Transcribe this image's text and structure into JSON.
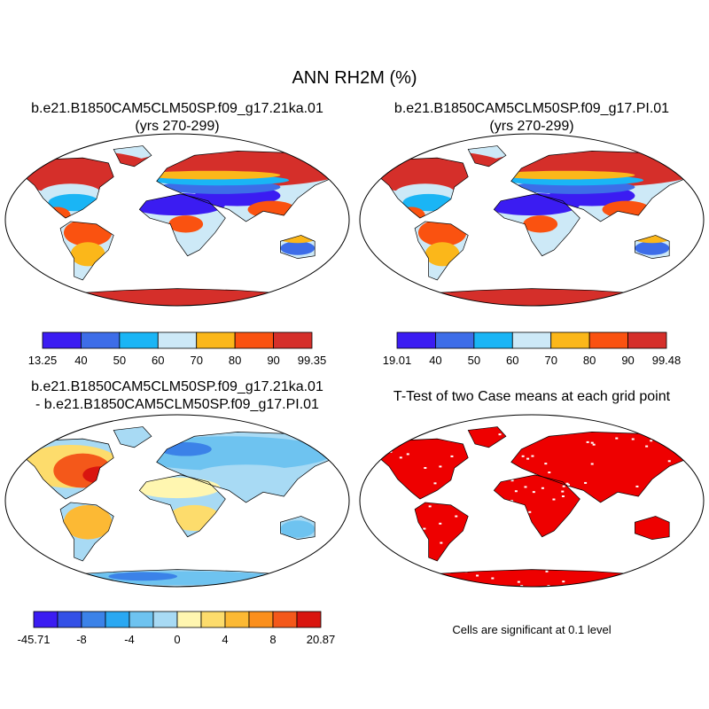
{
  "figure": {
    "title": "ANN RH2M (%)",
    "colors": {
      "ocean": "#ffffff",
      "coast": "#000000",
      "significance": "#ee0000"
    }
  },
  "panels": [
    {
      "id": "case",
      "title_line1": "b.e21.B1850CAM5CLM50SP.f09_g17.21ka.01",
      "title_line2": "(yrs 270-299)",
      "colorbar": {
        "labels": [
          "13.25",
          "40",
          "50",
          "60",
          "70",
          "80",
          "90",
          "99.35"
        ],
        "colors": [
          "#3b1cf2",
          "#3d6de8",
          "#1ab5f5",
          "#cde9f7",
          "#fbb71a",
          "#fa5210",
          "#d52f2a"
        ]
      }
    },
    {
      "id": "control",
      "title_line1": "b.e21.B1850CAM5CLM50SP.f09_g17.PI.01",
      "title_line2": "(yrs 270-299)",
      "colorbar": {
        "labels": [
          "19.01",
          "40",
          "50",
          "60",
          "70",
          "80",
          "90",
          "99.48"
        ],
        "colors": [
          "#3b1cf2",
          "#3d6de8",
          "#1ab5f5",
          "#cde9f7",
          "#fbb71a",
          "#fa5210",
          "#d52f2a"
        ]
      }
    },
    {
      "id": "difference",
      "title_line1": "b.e21.B1850CAM5CLM50SP.f09_g17.21ka.01",
      "title_line2": "- b.e21.B1850CAM5CLM50SP.f09_g17.PI.01",
      "colorbar": {
        "labels": [
          "-45.71",
          "",
          "-8",
          "",
          "-4",
          "",
          "0",
          "",
          "4",
          "",
          "8",
          "",
          "20.87"
        ],
        "colors": [
          "#3b1cf2",
          "#3350e6",
          "#3b82e8",
          "#2aa8f2",
          "#6ec3f0",
          "#a8daf4",
          "#fff6b0",
          "#fddc6c",
          "#fcb934",
          "#fb8f1c",
          "#f4581a",
          "#d9150f"
        ]
      }
    },
    {
      "id": "ttest",
      "title_line1": "T-Test of two Case means at each grid point",
      "note": "Cells are significant at 0.1 level"
    }
  ]
}
